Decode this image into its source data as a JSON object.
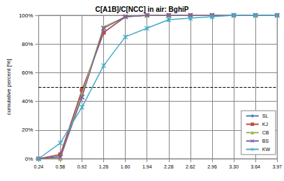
{
  "chart_data": {
    "type": "line",
    "title": "C[A1B]/C[NCC] in air: BghiP",
    "y_label": "cumulative percent [%]",
    "categories": [
      "0.24",
      "0.58",
      "0.92",
      "1.26",
      "1.60",
      "1.94",
      "2.28",
      "2.62",
      "2.96",
      "3.30",
      "3.64",
      "3.97"
    ],
    "series": [
      {
        "name": "SL",
        "color": "#4a7ebb",
        "marker": "diamond",
        "values": [
          0,
          2,
          47,
          88,
          99,
          100,
          100,
          100,
          100,
          100,
          100,
          100
        ]
      },
      {
        "name": "KJ",
        "color": "#be4b48",
        "marker": "square",
        "values": [
          0,
          3,
          48,
          88,
          99,
          100,
          100,
          100,
          100,
          100,
          100,
          100
        ]
      },
      {
        "name": "CB",
        "color": "#98b954",
        "marker": "triangle",
        "values": [
          0,
          0,
          45,
          92,
          99,
          100,
          100,
          100,
          100,
          100,
          100,
          100
        ]
      },
      {
        "name": "BS",
        "color": "#7d60a0",
        "marker": "x",
        "values": [
          0,
          1,
          43,
          91,
          99,
          100,
          100,
          100,
          100,
          100,
          100,
          100
        ]
      },
      {
        "name": "KW",
        "color": "#46aac5",
        "marker": "star",
        "values": [
          0,
          11,
          36,
          65,
          85,
          91,
          97,
          98,
          99,
          100,
          100,
          100
        ]
      }
    ],
    "threshold": 50,
    "ylim": [
      0,
      100
    ],
    "yticks": [
      {
        "value": 0,
        "label": "0%"
      },
      {
        "value": 20,
        "label": "20%"
      },
      {
        "value": 40,
        "label": "40%"
      },
      {
        "value": 60,
        "label": "60%"
      },
      {
        "value": 80,
        "label": "80%"
      },
      {
        "value": 100,
        "label": "100%"
      }
    ],
    "grid": true,
    "legend": "lower right"
  }
}
